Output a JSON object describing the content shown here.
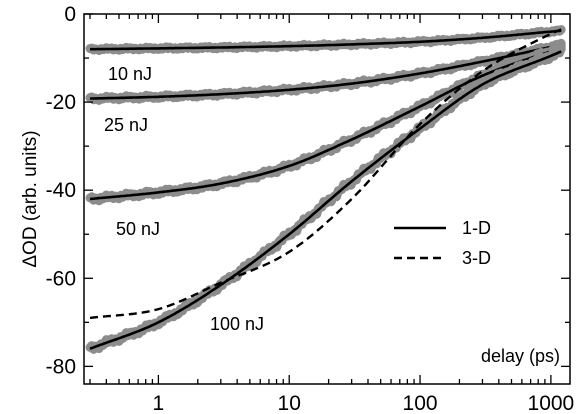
{
  "chart_data": {
    "type": "line",
    "title": "",
    "xlabel": "delay (ps)",
    "ylabel": "ΔOD (arb. units)",
    "xscale": "log",
    "xlim": [
      0.27,
      1400
    ],
    "ylim": [
      -84,
      0
    ],
    "xticks": [
      {
        "value": 1,
        "label": "1"
      },
      {
        "value": 10,
        "label": "10"
      },
      {
        "value": 100,
        "label": "100"
      },
      {
        "value": 1000,
        "label": "1000"
      }
    ],
    "yticks": [
      {
        "value": 0,
        "label": "0"
      },
      {
        "value": -20,
        "label": "-20"
      },
      {
        "value": -40,
        "label": "-40"
      },
      {
        "value": -60,
        "label": "-60"
      },
      {
        "value": -80,
        "label": "-80"
      }
    ],
    "legend": {
      "position": "right",
      "entries": [
        {
          "label": "1-D",
          "style": "solid"
        },
        {
          "label": "3-D",
          "style": "dashed"
        }
      ]
    },
    "series": [
      {
        "label": "10 nJ",
        "x": [
          0.3,
          1,
          3,
          10,
          30,
          100,
          300,
          1000,
          1200
        ],
        "data_y": [
          -8,
          -7.8,
          -7.6,
          -7.3,
          -6.9,
          -6.3,
          -5.4,
          -4.0,
          -3.8
        ],
        "fit_1d_y": [
          -8,
          -7.8,
          -7.6,
          -7.3,
          -6.9,
          -6.3,
          -5.4,
          -4.0,
          -3.8
        ]
      },
      {
        "label": "25 nJ",
        "x": [
          0.3,
          1,
          3,
          10,
          30,
          100,
          300,
          1000,
          1200
        ],
        "data_y": [
          -19.2,
          -18.8,
          -18.2,
          -17.2,
          -15.8,
          -13.5,
          -10.8,
          -7.5,
          -7.0
        ],
        "fit_1d_y": [
          -19.2,
          -18.8,
          -18.2,
          -17.2,
          -15.8,
          -13.5,
          -10.8,
          -7.5,
          -7.0
        ]
      },
      {
        "label": "50 nJ",
        "x": [
          0.3,
          1,
          3,
          10,
          30,
          100,
          300,
          1000,
          1200
        ],
        "data_y": [
          -42,
          -40.5,
          -38.5,
          -34.5,
          -28.5,
          -21.0,
          -14.0,
          -8.5,
          -7.8
        ],
        "fit_1d_y": [
          -42,
          -40.5,
          -38.5,
          -34.5,
          -28.5,
          -21.0,
          -14.0,
          -8.5,
          -7.8
        ]
      },
      {
        "label": "100 nJ",
        "x": [
          0.3,
          1,
          3,
          10,
          30,
          100,
          300,
          1000,
          1200
        ],
        "data_y": [
          -76,
          -70,
          -61.5,
          -50,
          -38,
          -26,
          -16,
          -9.5,
          -8.5
        ],
        "fit_1d_y": [
          -76,
          -70,
          -61.5,
          -50,
          -38,
          -26,
          -16,
          -9.5,
          -8.5
        ],
        "fit_3d_y": [
          -69,
          -67,
          -61,
          -54,
          -42,
          -25,
          -13,
          -4.5,
          -3.5
        ]
      }
    ]
  }
}
